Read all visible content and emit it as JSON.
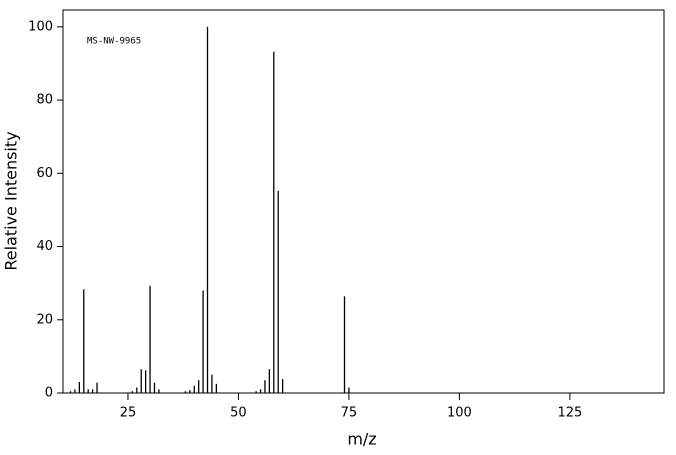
{
  "chart_data": {
    "type": "spectrum",
    "annotation": "MS-NW-9965",
    "x_label": "m/z",
    "y_label": "Relative Intensity",
    "x": [
      12,
      13,
      14,
      15,
      16,
      17,
      18,
      26,
      27,
      28,
      29,
      30,
      31,
      32,
      38,
      39,
      40,
      41,
      42,
      43,
      44,
      45,
      54,
      55,
      56,
      57,
      58,
      59,
      60,
      74,
      75
    ],
    "values": [
      0.5,
      1,
      3,
      28.3,
      1,
      1,
      2.8,
      0.5,
      1.5,
      6.5,
      6.2,
      29.3,
      2.8,
      1,
      0.5,
      0.8,
      2,
      3.5,
      28,
      100,
      5,
      2.5,
      0.5,
      1,
      3.5,
      6.5,
      93.2,
      55.2,
      3.8,
      26.4,
      1.5
    ],
    "color": "#000000",
    "xlim": [
      10.3,
      146.3
    ],
    "ylim": [
      0,
      104.6
    ],
    "xticks": [
      25,
      50,
      75,
      100,
      125
    ],
    "yticks": [
      0,
      20,
      40,
      60,
      80,
      100
    ]
  }
}
